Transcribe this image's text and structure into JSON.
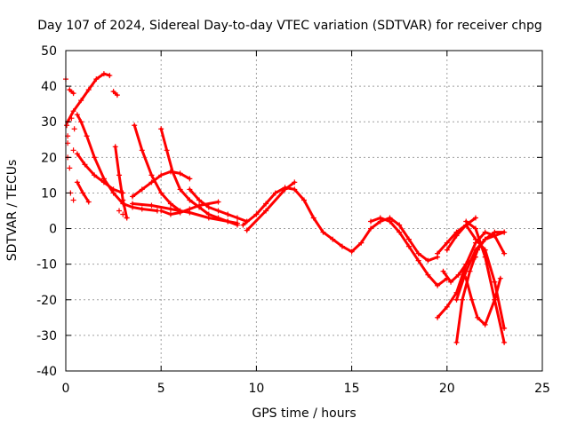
{
  "chart_data": {
    "type": "scatter",
    "title": "Day 107 of 2024, Sidereal Day-to-day VTEC variation (SDTVAR) for receiver chpg",
    "xlabel": "GPS time / hours",
    "ylabel": "SDTVAR / TECUs",
    "xlim": [
      0,
      25
    ],
    "ylim": [
      -40,
      50
    ],
    "xticks": [
      0,
      5,
      10,
      15,
      20,
      25
    ],
    "yticks": [
      -40,
      -30,
      -20,
      -10,
      0,
      10,
      20,
      30,
      40,
      50
    ],
    "grid": true,
    "marker": "plus",
    "color": "#ff0000",
    "series": [
      {
        "name": "trace-1",
        "x": [
          0.1,
          0.4,
          0.8,
          1.2,
          1.6,
          2.0,
          2.3
        ],
        "y": [
          30,
          33,
          36,
          39,
          42,
          43.5,
          43
        ]
      },
      {
        "name": "trace-2",
        "x": [
          0.2,
          0.4
        ],
        "y": [
          39,
          38
        ]
      },
      {
        "name": "trace-3",
        "x": [
          2.5,
          2.7
        ],
        "y": [
          38.5,
          37.5
        ]
      },
      {
        "name": "trace-4",
        "x": [
          0.6,
          0.8,
          1.1,
          1.5,
          2.0,
          2.5,
          3.0,
          3.5,
          4.0,
          4.8
        ],
        "y": [
          32,
          30,
          26,
          20,
          14,
          10,
          7,
          6,
          5.5,
          5
        ]
      },
      {
        "name": "trace-5",
        "x": [
          0.6,
          1.0,
          1.5,
          2.0,
          2.5,
          3.0
        ],
        "y": [
          21,
          18,
          15,
          13,
          11,
          10
        ]
      },
      {
        "name": "trace-6",
        "x": [
          0.6,
          0.9,
          1.2
        ],
        "y": [
          13,
          10,
          7.5
        ]
      },
      {
        "name": "trace-7",
        "x": [
          2.6,
          2.8,
          3.0,
          3.2
        ],
        "y": [
          23,
          15,
          8,
          3
        ]
      },
      {
        "name": "trace-8",
        "x": [
          3.6,
          4.0,
          4.5,
          5.0,
          5.5,
          6.0
        ],
        "y": [
          29,
          22,
          15,
          10,
          7,
          5
        ]
      },
      {
        "name": "trace-9",
        "x": [
          5.0,
          5.3,
          5.6,
          6.0,
          6.5,
          7.0,
          7.5,
          8.0,
          8.5,
          9.0
        ],
        "y": [
          28,
          22,
          16,
          11,
          8,
          6,
          4,
          3,
          2,
          1.5
        ]
      },
      {
        "name": "trace-10",
        "x": [
          3.5,
          4.0,
          4.5,
          5.0,
          5.5,
          6.0,
          6.5
        ],
        "y": [
          9,
          11,
          13,
          15,
          16,
          15.5,
          14
        ]
      },
      {
        "name": "trace-11",
        "x": [
          3.5,
          4.5,
          5.5,
          6.5,
          7.5,
          8.5,
          9.0
        ],
        "y": [
          7,
          6.5,
          5.5,
          4.5,
          3,
          2,
          1
        ]
      },
      {
        "name": "trace-12",
        "x": [
          5.0,
          5.5,
          6.0,
          6.5,
          7.0,
          8.0
        ],
        "y": [
          5,
          4,
          4.5,
          5.5,
          6.5,
          7.5
        ]
      },
      {
        "name": "trace-13",
        "x": [
          6.5,
          7.0,
          7.5,
          8.0,
          8.5,
          9.0,
          9.5
        ],
        "y": [
          11,
          8,
          6,
          5,
          4,
          3,
          2
        ]
      },
      {
        "name": "trace-14",
        "x": [
          9.3,
          10.0,
          10.5,
          11.0,
          11.5,
          12.0,
          12.5,
          13.0,
          13.5,
          14.0,
          14.5,
          15.0,
          15.5,
          16.0,
          16.5,
          17.0,
          17.5,
          18.0,
          18.5,
          19.0,
          19.5
        ],
        "y": [
          1,
          4,
          7,
          10,
          11.5,
          11,
          8,
          3,
          -1,
          -3,
          -5,
          -6.5,
          -4,
          0,
          2,
          3,
          1,
          -3,
          -7,
          -9,
          -8
        ]
      },
      {
        "name": "trace-15",
        "x": [
          9.5,
          10.5,
          11.5,
          12.0
        ],
        "y": [
          -0.5,
          5,
          11,
          13
        ]
      },
      {
        "name": "trace-16",
        "x": [
          16.0,
          16.5,
          17.0,
          17.5,
          18.0,
          18.5,
          19.0,
          19.5,
          20.0
        ],
        "y": [
          2,
          3,
          2,
          -1,
          -5,
          -9,
          -13,
          -16,
          -14
        ]
      },
      {
        "name": "trace-17",
        "x": [
          19.8,
          20.2,
          20.6,
          21.0,
          21.5
        ],
        "y": [
          -12,
          -15,
          -13,
          -10,
          -8
        ]
      },
      {
        "name": "trace-18",
        "x": [
          19.5,
          20.0,
          20.5,
          21.0,
          21.5,
          22.0,
          22.5,
          23.0
        ],
        "y": [
          -25,
          -22,
          -18,
          -10,
          -4,
          -1,
          -2,
          -7
        ]
      },
      {
        "name": "trace-19",
        "x": [
          20.5,
          20.8,
          21.2,
          21.6,
          22.0,
          22.5,
          23.0
        ],
        "y": [
          -32,
          -20,
          -12,
          -6,
          -3,
          -1,
          -1
        ]
      },
      {
        "name": "trace-20",
        "x": [
          21.0,
          21.5,
          22.0,
          22.5,
          23.0
        ],
        "y": [
          2,
          0,
          -8,
          -20,
          -32
        ]
      },
      {
        "name": "trace-21",
        "x": [
          20.0,
          20.5,
          21.0,
          21.5
        ],
        "y": [
          -6,
          -2,
          1,
          3
        ]
      },
      {
        "name": "trace-22",
        "x": [
          19.5,
          20.0,
          20.5,
          21.0,
          21.5,
          22.0,
          22.5,
          23.0
        ],
        "y": [
          -7,
          -4,
          -1,
          1,
          -3,
          -6,
          -15,
          -28
        ]
      },
      {
        "name": "trace-23",
        "x": [
          21.0,
          21.3,
          21.6,
          22.0,
          22.5,
          22.8
        ],
        "y": [
          -14,
          -20,
          -25,
          -27,
          -20,
          -14
        ]
      },
      {
        "name": "trace-24",
        "x": [
          20.5,
          21.0,
          21.5,
          22.0,
          22.5,
          23.0
        ],
        "y": [
          -20,
          -12,
          -6,
          -3,
          -2,
          -1
        ]
      }
    ],
    "points": {
      "x": [
        0.0,
        0.05,
        0.1,
        0.1,
        0.1,
        0.2,
        0.25,
        0.3,
        0.4,
        0.4,
        0.45,
        2.8,
        3.0,
        3.2
      ],
      "y": [
        42,
        29,
        26,
        24,
        20,
        17,
        10,
        31,
        8,
        22,
        28,
        5,
        4,
        3
      ]
    }
  }
}
